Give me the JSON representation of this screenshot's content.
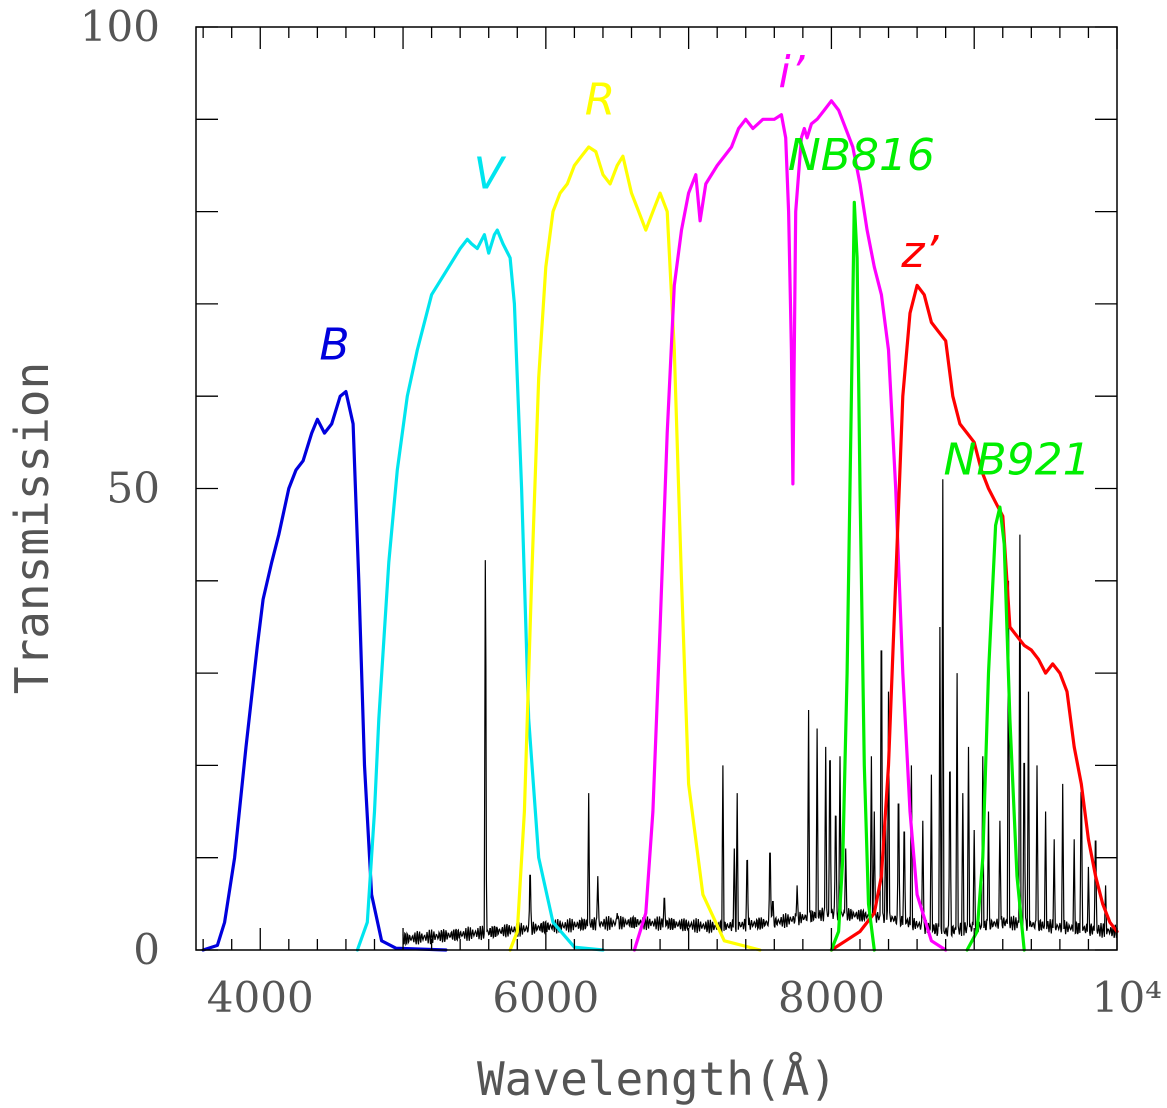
{
  "chart_data": {
    "type": "line",
    "xlabel": "Wavelength(Å)",
    "ylabel": "Transmission",
    "xlim": [
      3550,
      10000
    ],
    "ylim": [
      0,
      100
    ],
    "x_ticks": [
      {
        "value": 4000,
        "label": "4000"
      },
      {
        "value": 6000,
        "label": "6000"
      },
      {
        "value": 8000,
        "label": "8000"
      },
      {
        "value": 10000,
        "label": "10⁴"
      }
    ],
    "y_ticks": [
      {
        "value": 0,
        "label": "0"
      },
      {
        "value": 50,
        "label": "50"
      },
      {
        "value": 100,
        "label": "100"
      }
    ],
    "series": [
      {
        "name": "B",
        "color": "#0000dd",
        "points": [
          [
            3600,
            0
          ],
          [
            3700,
            0.5
          ],
          [
            3750,
            3
          ],
          [
            3820,
            10
          ],
          [
            3900,
            22
          ],
          [
            3980,
            33
          ],
          [
            4020,
            38
          ],
          [
            4080,
            42
          ],
          [
            4130,
            45
          ],
          [
            4200,
            50
          ],
          [
            4250,
            52
          ],
          [
            4300,
            53
          ],
          [
            4360,
            56
          ],
          [
            4400,
            57.5
          ],
          [
            4450,
            56
          ],
          [
            4500,
            57
          ],
          [
            4560,
            60
          ],
          [
            4600,
            60.5
          ],
          [
            4650,
            57
          ],
          [
            4690,
            40
          ],
          [
            4730,
            20
          ],
          [
            4780,
            6
          ],
          [
            4850,
            1
          ],
          [
            4950,
            0.2
          ],
          [
            5300,
            0
          ]
        ]
      },
      {
        "name": "V",
        "color": "#00e5ee",
        "points": [
          [
            4680,
            0
          ],
          [
            4750,
            3
          ],
          [
            4800,
            15
          ],
          [
            4830,
            25
          ],
          [
            4900,
            42
          ],
          [
            4960,
            52
          ],
          [
            5030,
            60
          ],
          [
            5100,
            65
          ],
          [
            5200,
            71
          ],
          [
            5300,
            73.5
          ],
          [
            5400,
            76
          ],
          [
            5450,
            77
          ],
          [
            5480,
            76.5
          ],
          [
            5520,
            76
          ],
          [
            5570,
            77.5
          ],
          [
            5600,
            75.5
          ],
          [
            5640,
            77.5
          ],
          [
            5660,
            78
          ],
          [
            5700,
            76.5
          ],
          [
            5750,
            75
          ],
          [
            5780,
            70
          ],
          [
            5830,
            50
          ],
          [
            5880,
            25
          ],
          [
            5950,
            10
          ],
          [
            6050,
            3
          ],
          [
            6200,
            0.3
          ],
          [
            6400,
            0
          ]
        ]
      },
      {
        "name": "R",
        "color": "#ffff00",
        "points": [
          [
            5750,
            0
          ],
          [
            5800,
            2
          ],
          [
            5850,
            15
          ],
          [
            5900,
            40
          ],
          [
            5950,
            62
          ],
          [
            6000,
            74
          ],
          [
            6050,
            80
          ],
          [
            6100,
            82
          ],
          [
            6150,
            83
          ],
          [
            6200,
            85
          ],
          [
            6250,
            86
          ],
          [
            6300,
            87
          ],
          [
            6350,
            86.5
          ],
          [
            6400,
            84
          ],
          [
            6450,
            83
          ],
          [
            6500,
            85
          ],
          [
            6540,
            86
          ],
          [
            6600,
            82
          ],
          [
            6650,
            80
          ],
          [
            6700,
            78
          ],
          [
            6750,
            80
          ],
          [
            6800,
            82
          ],
          [
            6850,
            80
          ],
          [
            6900,
            65
          ],
          [
            6950,
            40
          ],
          [
            7000,
            18
          ],
          [
            7100,
            6
          ],
          [
            7250,
            1
          ],
          [
            7500,
            0
          ]
        ]
      },
      {
        "name": "i’",
        "color": "#ff00ff",
        "points": [
          [
            6620,
            0
          ],
          [
            6700,
            4
          ],
          [
            6750,
            15
          ],
          [
            6800,
            35
          ],
          [
            6850,
            56
          ],
          [
            6900,
            72
          ],
          [
            6950,
            78
          ],
          [
            7000,
            82
          ],
          [
            7050,
            84
          ],
          [
            7080,
            79
          ],
          [
            7120,
            83
          ],
          [
            7200,
            85
          ],
          [
            7300,
            87
          ],
          [
            7350,
            89
          ],
          [
            7400,
            90
          ],
          [
            7450,
            89
          ],
          [
            7520,
            90
          ],
          [
            7600,
            90
          ],
          [
            7650,
            90.5
          ],
          [
            7680,
            88
          ],
          [
            7700,
            80
          ],
          [
            7720,
            65
          ],
          [
            7730,
            50.5
          ],
          [
            7740,
            65
          ],
          [
            7750,
            80
          ],
          [
            7790,
            88
          ],
          [
            7810,
            89
          ],
          [
            7830,
            88
          ],
          [
            7860,
            89.5
          ],
          [
            7900,
            90
          ],
          [
            7950,
            91
          ],
          [
            8000,
            92
          ],
          [
            8050,
            91
          ],
          [
            8100,
            89
          ],
          [
            8150,
            87
          ],
          [
            8200,
            83
          ],
          [
            8250,
            78
          ],
          [
            8300,
            74
          ],
          [
            8350,
            71
          ],
          [
            8400,
            65
          ],
          [
            8450,
            50
          ],
          [
            8500,
            30
          ],
          [
            8550,
            15
          ],
          [
            8600,
            6
          ],
          [
            8700,
            1
          ],
          [
            8800,
            0
          ]
        ]
      },
      {
        "name": "z’",
        "color": "#ff0000",
        "points": [
          [
            8000,
            0
          ],
          [
            8100,
            1
          ],
          [
            8200,
            2
          ],
          [
            8300,
            4
          ],
          [
            8350,
            8
          ],
          [
            8400,
            20
          ],
          [
            8450,
            40
          ],
          [
            8500,
            60
          ],
          [
            8550,
            69
          ],
          [
            8600,
            72
          ],
          [
            8650,
            71
          ],
          [
            8700,
            68
          ],
          [
            8750,
            67
          ],
          [
            8800,
            66
          ],
          [
            8850,
            60
          ],
          [
            8900,
            57
          ],
          [
            8950,
            56
          ],
          [
            9000,
            55
          ],
          [
            9050,
            52
          ],
          [
            9100,
            50
          ],
          [
            9150,
            48.5
          ],
          [
            9200,
            47
          ],
          [
            9250,
            35
          ],
          [
            9300,
            34
          ],
          [
            9350,
            33
          ],
          [
            9400,
            32.5
          ],
          [
            9450,
            31.5
          ],
          [
            9500,
            30
          ],
          [
            9550,
            31
          ],
          [
            9600,
            30
          ],
          [
            9650,
            28
          ],
          [
            9700,
            22
          ],
          [
            9750,
            18
          ],
          [
            9800,
            12
          ],
          [
            9850,
            8
          ],
          [
            9900,
            5
          ],
          [
            9950,
            3
          ],
          [
            10000,
            2
          ]
        ]
      },
      {
        "name": "NB816",
        "color": "#00ee00",
        "points": [
          [
            8000,
            0
          ],
          [
            8050,
            2
          ],
          [
            8080,
            10
          ],
          [
            8110,
            30
          ],
          [
            8140,
            60
          ],
          [
            8160,
            81
          ],
          [
            8180,
            75
          ],
          [
            8200,
            50
          ],
          [
            8230,
            20
          ],
          [
            8260,
            5
          ],
          [
            8300,
            0
          ]
        ]
      },
      {
        "name": "NB921",
        "color": "#00ee00",
        "points": [
          [
            8950,
            0
          ],
          [
            9020,
            2
          ],
          [
            9060,
            10
          ],
          [
            9100,
            30
          ],
          [
            9150,
            46
          ],
          [
            9180,
            48
          ],
          [
            9210,
            44
          ],
          [
            9250,
            25
          ],
          [
            9300,
            8
          ],
          [
            9350,
            0
          ]
        ]
      }
    ],
    "band_labels": [
      {
        "text": "B",
        "x": 4520,
        "y": 64,
        "color": "#0000dd"
      },
      {
        "text": "V",
        "x": 5600,
        "y": 82.5,
        "color": "#00e5ee"
      },
      {
        "text": "R",
        "x": 6380,
        "y": 90.5,
        "color": "#ffff00"
      },
      {
        "text": "i’",
        "x": 7720,
        "y": 93.5,
        "color": "#ff00ff"
      },
      {
        "text": "NB816",
        "x": 8210,
        "y": 84.5,
        "color": "#00ee00"
      },
      {
        "text": "z’",
        "x": 8620,
        "y": 74,
        "color": "#ff0000"
      },
      {
        "text": "NB921",
        "x": 9300,
        "y": 51.5,
        "color": "#00ee00"
      }
    ],
    "sky_spectrum": {
      "color": "#000000",
      "base_points": [
        [
          5000,
          1.2
        ],
        [
          5500,
          1.8
        ],
        [
          5800,
          2.2
        ],
        [
          6000,
          2.5
        ],
        [
          6300,
          2.8
        ],
        [
          6600,
          3
        ],
        [
          6900,
          2.8
        ],
        [
          7200,
          2.5
        ],
        [
          7600,
          3
        ],
        [
          8000,
          4
        ],
        [
          8400,
          3.5
        ],
        [
          8800,
          2
        ],
        [
          9200,
          3
        ],
        [
          9600,
          2.5
        ],
        [
          10000,
          2
        ]
      ],
      "emission_lines": [
        [
          5577,
          48
        ],
        [
          5890,
          10
        ],
        [
          6300,
          17
        ],
        [
          6364,
          8
        ],
        [
          6500,
          4
        ],
        [
          6830,
          6.5
        ],
        [
          7240,
          20
        ],
        [
          7320,
          11
        ],
        [
          7340,
          17
        ],
        [
          7410,
          12
        ],
        [
          7570,
          13
        ],
        [
          7590,
          6
        ],
        [
          7760,
          7
        ],
        [
          7840,
          26
        ],
        [
          7900,
          24
        ],
        [
          7960,
          22
        ],
        [
          7990,
          26
        ],
        [
          8030,
          18
        ],
        [
          8060,
          21
        ],
        [
          8100,
          11
        ],
        [
          8280,
          21
        ],
        [
          8300,
          15
        ],
        [
          8350,
          42
        ],
        [
          8380,
          14
        ],
        [
          8400,
          28
        ],
        [
          8470,
          20
        ],
        [
          8510,
          16
        ],
        [
          8560,
          20
        ],
        [
          8640,
          14
        ],
        [
          8700,
          19
        ],
        [
          8760,
          35
        ],
        [
          8780,
          51
        ],
        [
          8830,
          25
        ],
        [
          8880,
          30
        ],
        [
          8920,
          17
        ],
        [
          8960,
          22
        ],
        [
          9000,
          13
        ],
        [
          9060,
          21
        ],
        [
          9100,
          15
        ],
        [
          9180,
          14
        ],
        [
          9240,
          40
        ],
        [
          9320,
          45
        ],
        [
          9350,
          26
        ],
        [
          9380,
          28
        ],
        [
          9440,
          20
        ],
        [
          9500,
          15
        ],
        [
          9560,
          12
        ],
        [
          9620,
          18
        ],
        [
          9700,
          12
        ],
        [
          9750,
          22
        ],
        [
          9800,
          9
        ],
        [
          9850,
          15
        ],
        [
          9920,
          7
        ]
      ]
    }
  }
}
